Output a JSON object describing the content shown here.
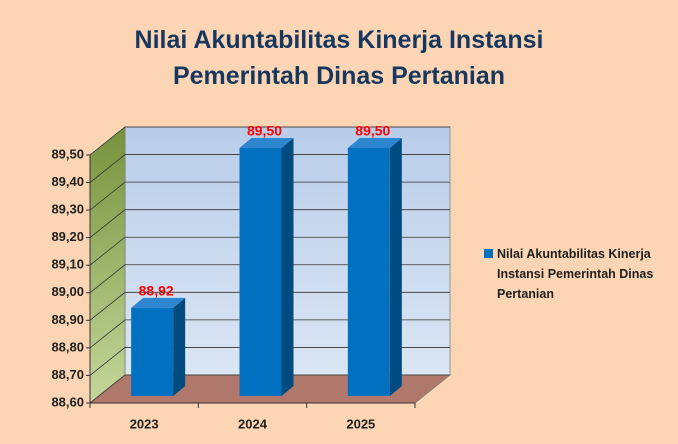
{
  "chart_data": {
    "type": "bar3d",
    "title": [
      "Nilai Akuntabilitas Kinerja Instansi",
      "Pemerintah Dinas Pertanian"
    ],
    "categories": [
      "2023",
      "2024",
      "2025"
    ],
    "series": [
      {
        "name": "Nilai Akuntabilitas Kinerja Instansi Pemerintah Dinas Pertanian",
        "color": "#0070c0",
        "values": [
          88.92,
          89.5,
          89.5
        ],
        "value_labels": [
          "88,92",
          "89,50",
          "89,50"
        ]
      }
    ],
    "ylim": [
      88.6,
      89.5
    ],
    "yticks": [
      {
        "value": 88.6,
        "label": "88,60"
      },
      {
        "value": 88.7,
        "label": "88,70"
      },
      {
        "value": 88.8,
        "label": "88,80"
      },
      {
        "value": 88.9,
        "label": "88,90"
      },
      {
        "value": 89.0,
        "label": "89,00"
      },
      {
        "value": 89.1,
        "label": "89,10"
      },
      {
        "value": 89.2,
        "label": "89,20"
      },
      {
        "value": 89.3,
        "label": "89,30"
      },
      {
        "value": 89.4,
        "label": "89,40"
      },
      {
        "value": 89.5,
        "label": "89,50"
      }
    ],
    "grid": true,
    "legend": "right",
    "value_label_color": "#ff0000"
  }
}
